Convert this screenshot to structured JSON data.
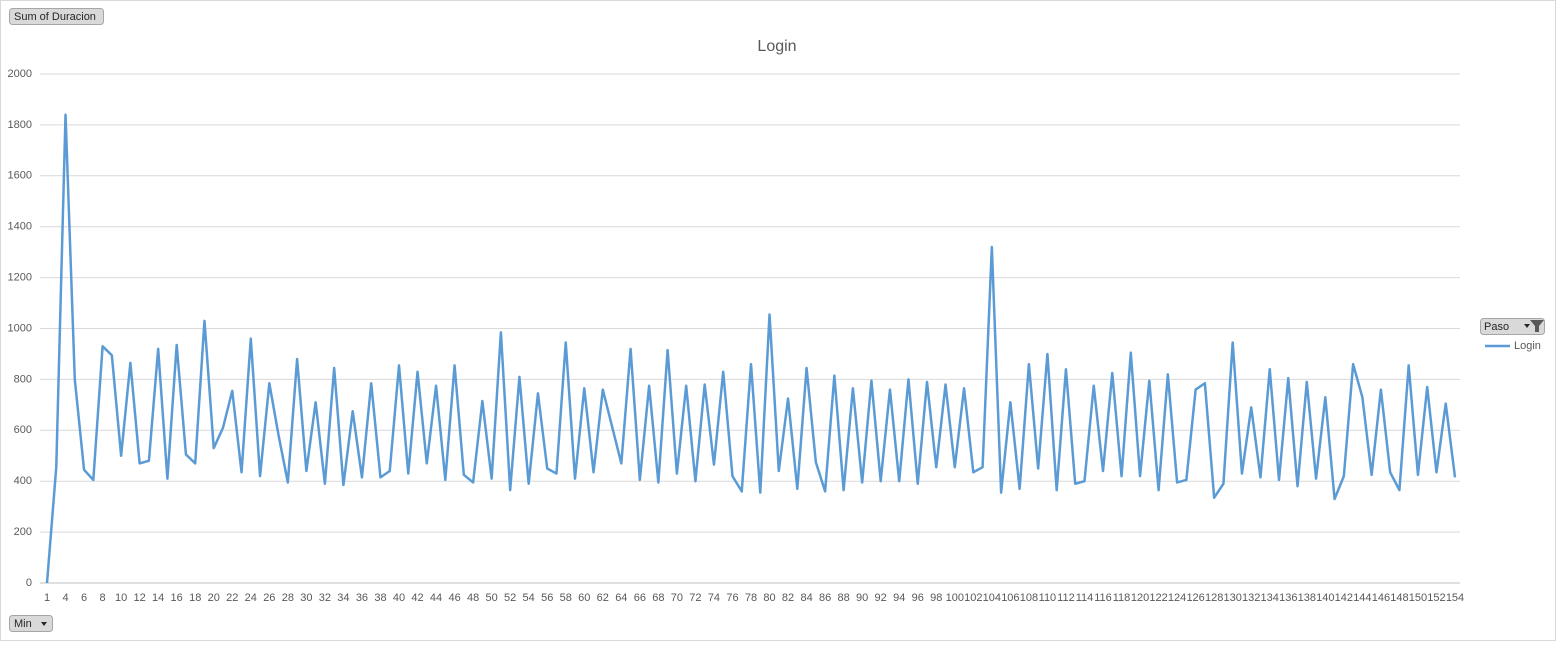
{
  "field_buttons": {
    "values_field": "Sum of Duracion",
    "axis_field": "Min",
    "legend_field": "Paso"
  },
  "chart_data": {
    "type": "line",
    "title": "Login",
    "categories": [
      1,
      null,
      4,
      null,
      6,
      null,
      8,
      null,
      10,
      null,
      12,
      null,
      14,
      null,
      16,
      null,
      18,
      null,
      20,
      null,
      22,
      null,
      24,
      null,
      26,
      null,
      28,
      null,
      30,
      null,
      32,
      null,
      34,
      null,
      36,
      null,
      38,
      null,
      40,
      null,
      42,
      null,
      44,
      null,
      46,
      null,
      48,
      null,
      50,
      null,
      52,
      null,
      54,
      null,
      56,
      null,
      58,
      null,
      60,
      null,
      62,
      null,
      64,
      null,
      66,
      null,
      68,
      null,
      70,
      null,
      72,
      null,
      74,
      null,
      76,
      null,
      78,
      null,
      80,
      null,
      82,
      null,
      84,
      null,
      86,
      null,
      88,
      null,
      90,
      null,
      92,
      null,
      94,
      null,
      96,
      null,
      98,
      null,
      100,
      null,
      102,
      null,
      104,
      null,
      106,
      null,
      108,
      null,
      110,
      null,
      112,
      null,
      114,
      null,
      116,
      null,
      118,
      null,
      120,
      null,
      122,
      null,
      124,
      null,
      126,
      null,
      128,
      null,
      130,
      null,
      132,
      null,
      134,
      null,
      136,
      null,
      138,
      null,
      140,
      null,
      142,
      null,
      144,
      null,
      146,
      null,
      148,
      null,
      150,
      null,
      152,
      null,
      154
    ],
    "series": [
      {
        "name": "Login",
        "color": "#5b9bd5",
        "values": [
          0,
          455,
          1840,
          800,
          445,
          405,
          930,
          895,
          500,
          865,
          470,
          480,
          920,
          410,
          935,
          505,
          470,
          1030,
          530,
          610,
          755,
          435,
          960,
          420,
          785,
          580,
          395,
          880,
          440,
          710,
          390,
          845,
          385,
          675,
          415,
          785,
          415,
          440,
          855,
          430,
          830,
          470,
          775,
          405,
          855,
          425,
          395,
          715,
          410,
          985,
          365,
          810,
          390,
          745,
          450,
          430,
          945,
          410,
          765,
          435,
          760,
          615,
          470,
          920,
          405,
          775,
          395,
          915,
          430,
          775,
          400,
          780,
          465,
          830,
          420,
          360,
          860,
          355,
          1055,
          440,
          725,
          370,
          845,
          475,
          360,
          815,
          365,
          765,
          395,
          795,
          400,
          760,
          400,
          800,
          390,
          790,
          455,
          780,
          455,
          765,
          435,
          455,
          1320,
          355,
          710,
          370,
          860,
          450,
          900,
          365,
          840,
          390,
          400,
          775,
          440,
          825,
          420,
          905,
          420,
          795,
          365,
          820,
          395,
          405,
          760,
          785,
          335,
          390,
          945,
          430,
          690,
          415,
          840,
          405,
          805,
          380,
          790,
          410,
          730,
          330,
          420,
          860,
          730,
          425,
          760,
          435,
          365,
          855,
          425,
          770,
          435,
          705,
          415
        ]
      }
    ],
    "ylim": [
      0,
      2000
    ],
    "yticks": [
      0,
      200,
      400,
      600,
      800,
      1000,
      1200,
      1400,
      1600,
      1800,
      2000
    ],
    "grid": true
  }
}
